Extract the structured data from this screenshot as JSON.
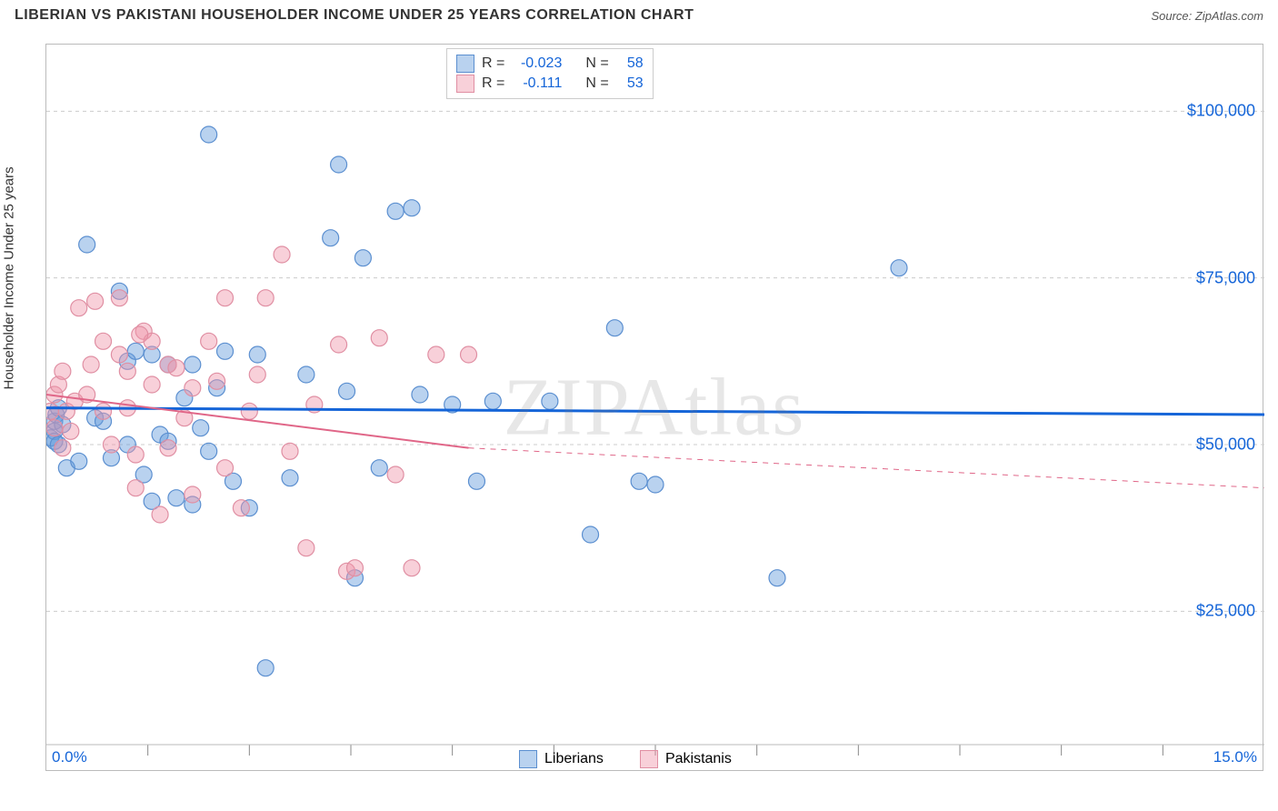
{
  "title": "LIBERIAN VS PAKISTANI HOUSEHOLDER INCOME UNDER 25 YEARS CORRELATION CHART",
  "source": "Source: ZipAtlas.com",
  "y_axis_label": "Householder Income Under 25 years",
  "watermark": "ZIPAtlas",
  "chart": {
    "type": "scatter",
    "background_color": "#ffffff",
    "grid_color": "#cccccc",
    "grid_dash": "4,4",
    "border_color": "#bbbbbb",
    "xlim": [
      0,
      15
    ],
    "ylim": [
      5000,
      110000
    ],
    "x_ticks": [
      0,
      15
    ],
    "x_tick_labels": [
      "0.0%",
      "15.0%"
    ],
    "x_minor_ticks": [
      1.25,
      2.5,
      3.75,
      5.0,
      6.25,
      7.5,
      8.75,
      10.0,
      11.25,
      12.5,
      13.75
    ],
    "y_ticks": [
      25000,
      50000,
      75000,
      100000
    ],
    "y_tick_labels": [
      "$25,000",
      "$50,000",
      "$75,000",
      "$100,000"
    ],
    "series": [
      {
        "name": "Liberians",
        "color_fill": "rgba(100,155,220,0.45)",
        "color_stroke": "#5b8fd0",
        "marker_radius": 9,
        "r_value": "-0.023",
        "n_value": "58",
        "trend": {
          "color": "#1565d8",
          "width": 3,
          "y_start": 55500,
          "y_end": 54500,
          "x_start": 0,
          "x_end": 15,
          "dash": "none"
        },
        "points": [
          [
            0.05,
            51000
          ],
          [
            0.1,
            52000
          ],
          [
            0.1,
            53500
          ],
          [
            0.1,
            50500
          ],
          [
            0.12,
            54500
          ],
          [
            0.15,
            55500
          ],
          [
            0.15,
            50000
          ],
          [
            0.2,
            53000
          ],
          [
            0.25,
            46500
          ],
          [
            0.4,
            47500
          ],
          [
            0.5,
            80000
          ],
          [
            0.6,
            54000
          ],
          [
            0.7,
            53500
          ],
          [
            0.9,
            73000
          ],
          [
            1.0,
            62500
          ],
          [
            1.0,
            50000
          ],
          [
            1.1,
            64000
          ],
          [
            1.2,
            45500
          ],
          [
            1.3,
            63500
          ],
          [
            1.3,
            41500
          ],
          [
            1.4,
            51500
          ],
          [
            1.5,
            62000
          ],
          [
            1.5,
            50500
          ],
          [
            1.6,
            42000
          ],
          [
            1.7,
            57000
          ],
          [
            1.8,
            62000
          ],
          [
            1.8,
            41000
          ],
          [
            2.0,
            96500
          ],
          [
            2.0,
            49000
          ],
          [
            2.1,
            58500
          ],
          [
            2.2,
            64000
          ],
          [
            2.3,
            44500
          ],
          [
            2.5,
            40500
          ],
          [
            2.6,
            63500
          ],
          [
            2.7,
            16500
          ],
          [
            3.0,
            45000
          ],
          [
            3.2,
            60500
          ],
          [
            3.5,
            81000
          ],
          [
            3.6,
            92000
          ],
          [
            3.7,
            58000
          ],
          [
            3.8,
            30000
          ],
          [
            3.9,
            78000
          ],
          [
            4.1,
            46500
          ],
          [
            4.3,
            85000
          ],
          [
            4.5,
            85500
          ],
          [
            4.6,
            57500
          ],
          [
            5.0,
            56000
          ],
          [
            5.3,
            44500
          ],
          [
            5.5,
            56500
          ],
          [
            6.2,
            56500
          ],
          [
            6.7,
            36500
          ],
          [
            7.0,
            67500
          ],
          [
            7.3,
            44500
          ],
          [
            7.5,
            44000
          ],
          [
            9.0,
            30000
          ],
          [
            10.5,
            76500
          ],
          [
            1.9,
            52500
          ],
          [
            0.8,
            48000
          ]
        ]
      },
      {
        "name": "Pakistanis",
        "color_fill": "rgba(240,150,170,0.45)",
        "color_stroke": "#e08fa3",
        "marker_radius": 9,
        "r_value": "-0.111",
        "n_value": "53",
        "trend_solid": {
          "color": "#e06688",
          "width": 2,
          "y_start": 57500,
          "y_end": 49500,
          "x_start": 0,
          "x_end": 5.2
        },
        "trend_dash": {
          "color": "#e06688",
          "width": 1,
          "y_start": 49500,
          "y_end": 43500,
          "x_start": 5.2,
          "x_end": 15,
          "dash": "6,6"
        },
        "points": [
          [
            0.05,
            55000
          ],
          [
            0.1,
            57500
          ],
          [
            0.1,
            52500
          ],
          [
            0.15,
            59000
          ],
          [
            0.2,
            61000
          ],
          [
            0.2,
            49500
          ],
          [
            0.25,
            55000
          ],
          [
            0.3,
            52000
          ],
          [
            0.35,
            56500
          ],
          [
            0.4,
            70500
          ],
          [
            0.5,
            57500
          ],
          [
            0.55,
            62000
          ],
          [
            0.6,
            71500
          ],
          [
            0.7,
            65500
          ],
          [
            0.7,
            55000
          ],
          [
            0.8,
            50000
          ],
          [
            0.9,
            63500
          ],
          [
            0.9,
            72000
          ],
          [
            1.0,
            61000
          ],
          [
            1.0,
            55500
          ],
          [
            1.1,
            48500
          ],
          [
            1.1,
            43500
          ],
          [
            1.2,
            67000
          ],
          [
            1.3,
            59000
          ],
          [
            1.3,
            65500
          ],
          [
            1.4,
            39500
          ],
          [
            1.5,
            62000
          ],
          [
            1.5,
            49500
          ],
          [
            1.6,
            61500
          ],
          [
            1.7,
            54000
          ],
          [
            1.8,
            58500
          ],
          [
            1.8,
            42500
          ],
          [
            2.0,
            65500
          ],
          [
            2.1,
            59500
          ],
          [
            2.2,
            72000
          ],
          [
            2.2,
            46500
          ],
          [
            2.4,
            40500
          ],
          [
            2.5,
            55000
          ],
          [
            2.6,
            60500
          ],
          [
            2.7,
            72000
          ],
          [
            2.9,
            78500
          ],
          [
            3.0,
            49000
          ],
          [
            3.2,
            34500
          ],
          [
            3.3,
            56000
          ],
          [
            3.6,
            65000
          ],
          [
            3.7,
            31000
          ],
          [
            3.8,
            31500
          ],
          [
            4.1,
            66000
          ],
          [
            4.3,
            45500
          ],
          [
            4.5,
            31500
          ],
          [
            4.8,
            63500
          ],
          [
            5.2,
            63500
          ],
          [
            1.15,
            66500
          ]
        ]
      }
    ]
  },
  "legend": {
    "items": [
      {
        "label": "Liberians",
        "fill": "rgba(100,155,220,0.45)",
        "stroke": "#5b8fd0"
      },
      {
        "label": "Pakistanis",
        "fill": "rgba(240,150,170,0.45)",
        "stroke": "#e08fa3"
      }
    ]
  },
  "rn_box": {
    "rows": [
      {
        "fill": "rgba(100,155,220,0.45)",
        "stroke": "#5b8fd0",
        "r_label": "R =",
        "r_val": "-0.023",
        "n_label": "N =",
        "n_val": "58"
      },
      {
        "fill": "rgba(240,150,170,0.45)",
        "stroke": "#e08fa3",
        "r_label": "R =",
        "r_val": "-0.111",
        "n_label": "N =",
        "n_val": "53"
      }
    ]
  }
}
